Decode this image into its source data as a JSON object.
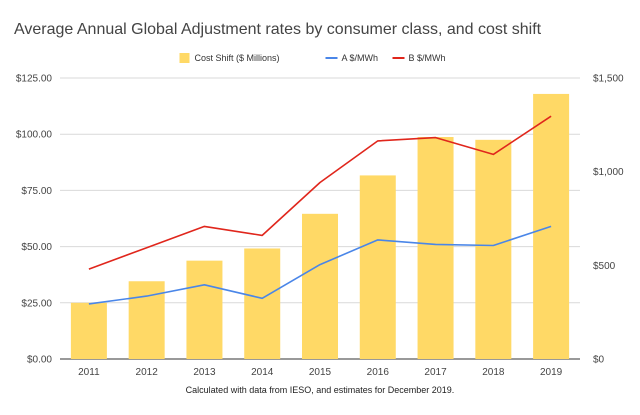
{
  "chart_data": {
    "type": "bar",
    "title": "Average Annual Global Adjustment rates by consumer class, and cost shift",
    "caption": "Calculated with data from IESO, and estimates for December 2019.",
    "categories": [
      "2011",
      "2012",
      "2013",
      "2014",
      "2015",
      "2016",
      "2017",
      "2018",
      "2019"
    ],
    "left_axis": {
      "ylim": [
        0,
        125
      ],
      "ticks": [
        0,
        25,
        50,
        75,
        100,
        125
      ],
      "tick_labels": [
        "$0.00",
        "$25.00",
        "$50.00",
        "$75.00",
        "$100.00",
        "$125.00"
      ]
    },
    "right_axis": {
      "ylim": [
        0,
        1500
      ],
      "ticks": [
        0,
        500,
        1000,
        1500
      ],
      "tick_labels": [
        "$0",
        "$500",
        "$1,000",
        "$1,500"
      ]
    },
    "grid": true,
    "legend_position": "top-center",
    "series": [
      {
        "name": "Cost Shift ($ Millions)",
        "kind": "bar",
        "axis": "right",
        "color": "#FFD966",
        "values": [
          300,
          415,
          525,
          590,
          775,
          980,
          1185,
          1170,
          1415
        ]
      },
      {
        "name": "A $/MWh",
        "kind": "line",
        "axis": "left",
        "color": "#4A86E8",
        "values": [
          24.5,
          28,
          33,
          27,
          42,
          53,
          51,
          50.5,
          59
        ]
      },
      {
        "name": "B $/MWh",
        "kind": "line",
        "axis": "left",
        "color": "#E0261C",
        "values": [
          40,
          49.5,
          59,
          55,
          78.5,
          97,
          98.5,
          91,
          108
        ]
      }
    ]
  }
}
